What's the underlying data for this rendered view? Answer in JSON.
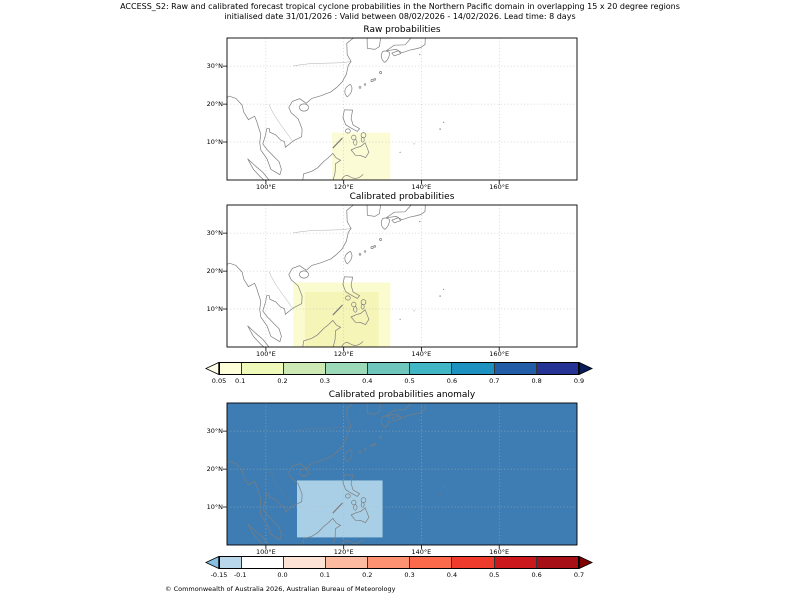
{
  "header": {
    "title_line1": "ACCESS_S2: Raw and calibrated forecast tropical cyclone probabilities in the Northern Pacific domain in overlapping 15 x 20 degree regions",
    "title_line2": "initialised date 31/01/2026 :  Valid between 08/02/2026 - 14/02/2026. Lead time: 8 days"
  },
  "axes": {
    "y_ticks": [
      "30°N",
      "20°N",
      "10°N"
    ],
    "x_ticks": [
      "100°E",
      "120°E",
      "140°E",
      "160°E"
    ]
  },
  "colorbars": [
    {
      "name": "probability",
      "ticks": [
        0.05,
        0.1,
        0.2,
        0.3,
        0.4,
        0.5,
        0.6,
        0.7,
        0.8,
        0.9
      ],
      "tick_labels": [
        "0.05",
        "0.1",
        "0.2",
        "0.3",
        "0.4",
        "0.5",
        "0.6",
        "0.7",
        "0.8",
        "0.9"
      ],
      "segment_colors": [
        "#ffffd9",
        "#eff9b9",
        "#cdeab4",
        "#9cd9b9",
        "#6ec6bd",
        "#41b6c4",
        "#1d91c0",
        "#225ea8",
        "#253494"
      ],
      "under_color": "#ffffe8",
      "over_color": "#081d58"
    },
    {
      "name": "anomaly",
      "ticks": [
        -0.15,
        -0.1,
        0.0,
        0.1,
        0.2,
        0.3,
        0.4,
        0.5,
        0.6,
        0.7
      ],
      "tick_labels": [
        "-0.15",
        "-0.1",
        "0.0",
        "0.1",
        "0.2",
        "0.3",
        "0.4",
        "0.5",
        "0.6",
        "0.7"
      ],
      "segment_colors": [
        "#b9d7ea",
        "#ffffff",
        "#fde3d5",
        "#fcbba1",
        "#fc9272",
        "#fb6a4a",
        "#ef3b2c",
        "#cb181d",
        "#a50f15"
      ],
      "under_color": "#88bee0",
      "over_color": "#7f0000"
    }
  ],
  "chart_data": [
    {
      "type": "heatmap",
      "title": "Raw probabilities",
      "x_ticks": [
        "100°E",
        "120°E",
        "140°E",
        "160°E"
      ],
      "y_ticks": [
        "10°N",
        "20°N",
        "30°N"
      ],
      "lon_range": [
        90,
        180
      ],
      "lat_range": [
        0,
        37.4
      ],
      "grid": true,
      "background": {
        "value": "< 0.05",
        "color": "#ffffff"
      },
      "regions": [
        {
          "lon": [
            117,
            132
          ],
          "lat": [
            0,
            12.5
          ],
          "value": "0.05-0.1",
          "color": "#fbfbd6"
        }
      ]
    },
    {
      "type": "heatmap",
      "title": "Calibrated probabilities",
      "x_ticks": [
        "100°E",
        "120°E",
        "140°E",
        "160°E"
      ],
      "y_ticks": [
        "10°N",
        "20°N",
        "30°N"
      ],
      "lon_range": [
        90,
        180
      ],
      "lat_range": [
        0,
        37.4
      ],
      "grid": true,
      "background": {
        "value": "< 0.05",
        "color": "#ffffff"
      },
      "regions": [
        {
          "lon": [
            107,
            132
          ],
          "lat": [
            0,
            17
          ],
          "value": "0.05-0.1",
          "color": "#fbfbd0"
        },
        {
          "lon": [
            110,
            129
          ],
          "lat": [
            0,
            14.5
          ],
          "value": "0.1",
          "color": "#f5f5b8"
        }
      ]
    },
    {
      "type": "heatmap",
      "title": "Calibrated probabilities anomaly",
      "x_ticks": [
        "100°E",
        "120°E",
        "140°E",
        "160°E"
      ],
      "y_ticks": [
        "10°N",
        "20°N",
        "30°N"
      ],
      "lon_range": [
        90,
        180
      ],
      "lat_range": [
        0,
        37.4
      ],
      "grid": true,
      "background": {
        "value": "< -0.15",
        "color": "#3d7db3"
      },
      "regions": [
        {
          "lon": [
            108,
            130
          ],
          "lat": [
            2,
            17
          ],
          "value": "-0.15 to -0.1",
          "color": "#a9cfe6"
        }
      ]
    }
  ],
  "footer": "© Commonwealth of Australia 2026, Australian Bureau of Meteorology"
}
